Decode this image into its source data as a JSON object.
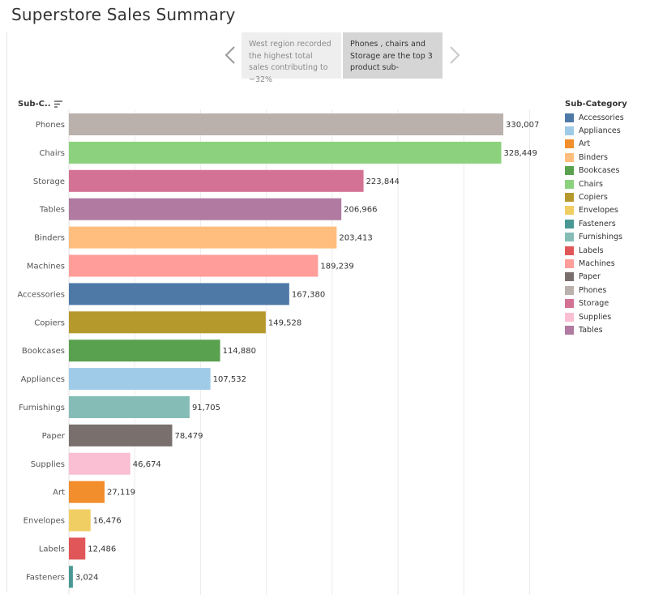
{
  "page": {
    "title": "Superstore Sales Summary"
  },
  "story": {
    "points": [
      {
        "text": "West region recorded the highest total sales contributing to ~32%"
      },
      {
        "text": "Phones , chairs and Storage are the top 3 product sub-"
      }
    ]
  },
  "axis": {
    "header": "Sub-C.."
  },
  "legend": {
    "title": "Sub-Category",
    "items": [
      {
        "label": "Accessories",
        "color": "#4e79a7"
      },
      {
        "label": "Appliances",
        "color": "#a0cbe8"
      },
      {
        "label": "Art",
        "color": "#f28e2b"
      },
      {
        "label": "Binders",
        "color": "#ffbe7d"
      },
      {
        "label": "Bookcases",
        "color": "#59a14f"
      },
      {
        "label": "Chairs",
        "color": "#8cd17d"
      },
      {
        "label": "Copiers",
        "color": "#b6992d"
      },
      {
        "label": "Envelopes",
        "color": "#f1ce63"
      },
      {
        "label": "Fasteners",
        "color": "#499894"
      },
      {
        "label": "Furnishings",
        "color": "#86bcb6"
      },
      {
        "label": "Labels",
        "color": "#e15759"
      },
      {
        "label": "Machines",
        "color": "#ff9d9a"
      },
      {
        "label": "Paper",
        "color": "#79706e"
      },
      {
        "label": "Phones",
        "color": "#bab0ac"
      },
      {
        "label": "Storage",
        "color": "#d37295"
      },
      {
        "label": "Supplies",
        "color": "#fabfd2"
      },
      {
        "label": "Tables",
        "color": "#b07aa1"
      }
    ]
  },
  "chart_data": {
    "type": "bar",
    "orientation": "horizontal",
    "title": "",
    "xlabel": "",
    "ylabel": "Sub-Category",
    "xlim": [
      0,
      350000
    ],
    "grid": true,
    "sort": "descending",
    "categories": [
      "Phones",
      "Chairs",
      "Storage",
      "Tables",
      "Binders",
      "Machines",
      "Accessories",
      "Copiers",
      "Bookcases",
      "Appliances",
      "Furnishings",
      "Paper",
      "Supplies",
      "Art",
      "Envelopes",
      "Labels",
      "Fasteners"
    ],
    "values": [
      330007,
      328449,
      223844,
      206966,
      203413,
      189239,
      167380,
      149528,
      114880,
      107532,
      91705,
      78479,
      46674,
      27119,
      16476,
      12486,
      3024
    ],
    "value_labels": [
      "330,007",
      "328,449",
      "223,844",
      "206,966",
      "203,413",
      "189,239",
      "167,380",
      "149,528",
      "114,880",
      "107,532",
      "91,705",
      "78,479",
      "46,674",
      "27,119",
      "16,476",
      "12,486",
      "3,024"
    ],
    "colors": [
      "#bab0ac",
      "#8cd17d",
      "#d37295",
      "#b07aa1",
      "#ffbe7d",
      "#ff9d9a",
      "#4e79a7",
      "#b6992d",
      "#59a14f",
      "#a0cbe8",
      "#86bcb6",
      "#79706e",
      "#fabfd2",
      "#f28e2b",
      "#f1ce63",
      "#e15759",
      "#499894"
    ],
    "gridline_values": [
      50000,
      100000,
      150000,
      200000,
      250000,
      300000,
      350000
    ],
    "legend_position": "right"
  }
}
